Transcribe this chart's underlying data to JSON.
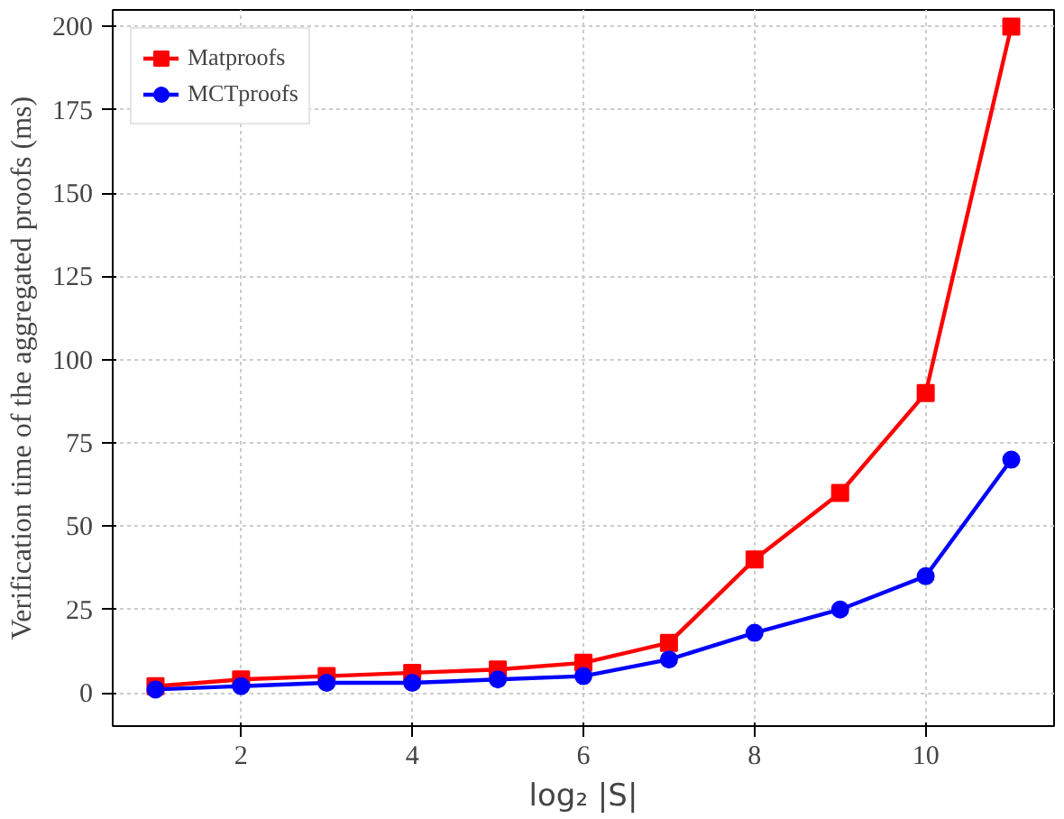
{
  "chart_data": {
    "type": "line",
    "xlabel": "log₂ |S|",
    "ylabel": "Verification time of the aggregated proofs (ms)",
    "x": [
      1,
      2,
      3,
      4,
      5,
      6,
      7,
      8,
      9,
      10,
      11
    ],
    "series": [
      {
        "name": "Matproofs",
        "color": "#ff0000",
        "marker": "square",
        "values": [
          2,
          4,
          5,
          6,
          7,
          9,
          15,
          40,
          60,
          90,
          200
        ]
      },
      {
        "name": "MCTproofs",
        "color": "#0000ff",
        "marker": "circle",
        "values": [
          1,
          2,
          3,
          3,
          4,
          5,
          10,
          18,
          25,
          35,
          70
        ]
      }
    ],
    "xlim": [
      0.5,
      11.5
    ],
    "ylim": [
      -10,
      205
    ],
    "xticks": [
      2,
      4,
      6,
      8,
      10
    ],
    "yticks": [
      0,
      25,
      50,
      75,
      100,
      125,
      150,
      175,
      200
    ],
    "grid": true,
    "legend": "top left",
    "line_style": "solid"
  }
}
